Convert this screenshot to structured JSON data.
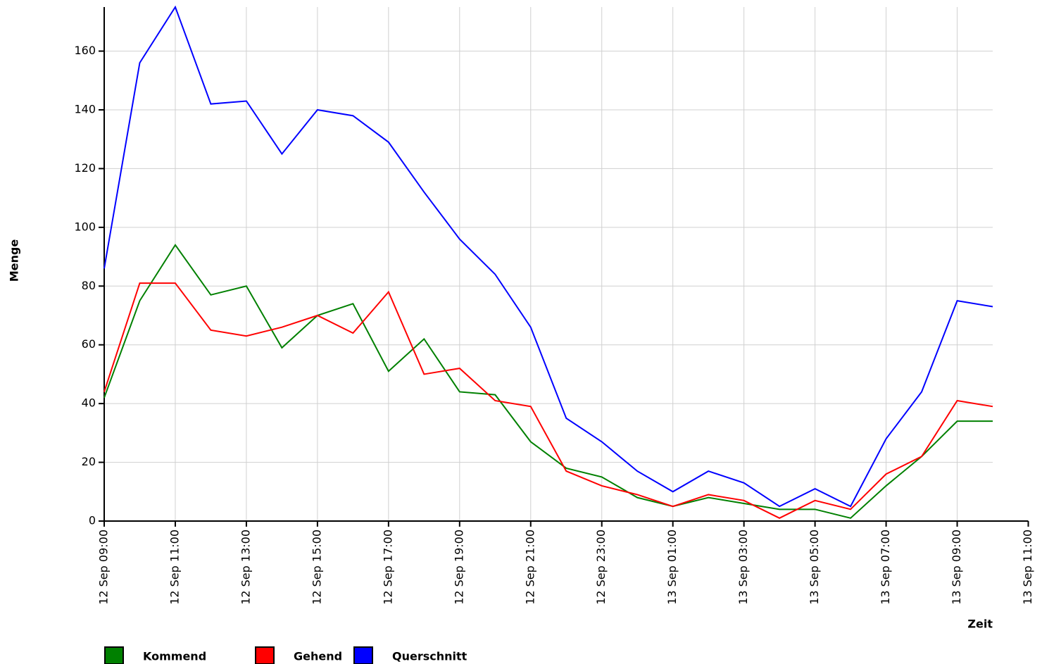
{
  "chart_data": {
    "type": "line",
    "x": [
      "12 Sep 09:00",
      "12 Sep 10:00",
      "12 Sep 11:00",
      "12 Sep 12:00",
      "12 Sep 13:00",
      "12 Sep 14:00",
      "12 Sep 15:00",
      "12 Sep 16:00",
      "12 Sep 17:00",
      "12 Sep 18:00",
      "12 Sep 19:00",
      "12 Sep 20:00",
      "12 Sep 21:00",
      "12 Sep 22:00",
      "12 Sep 23:00",
      "13 Sep 00:00",
      "13 Sep 01:00",
      "13 Sep 02:00",
      "13 Sep 03:00",
      "13 Sep 04:00",
      "13 Sep 05:00",
      "13 Sep 06:00",
      "13 Sep 07:00",
      "13 Sep 08:00",
      "13 Sep 09:00",
      "13 Sep 10:00"
    ],
    "series": [
      {
        "name": "Kommend",
        "color": "#008000",
        "values": [
          42,
          75,
          94,
          77,
          80,
          59,
          70,
          74,
          51,
          62,
          44,
          43,
          27,
          18,
          15,
          8,
          5,
          8,
          6,
          4,
          4,
          1,
          12,
          22,
          34,
          34
        ]
      },
      {
        "name": "Gehend",
        "color": "#ff0000",
        "values": [
          44,
          81,
          81,
          65,
          63,
          66,
          70,
          64,
          78,
          50,
          52,
          41,
          39,
          17,
          12,
          9,
          5,
          9,
          7,
          1,
          7,
          4,
          16,
          22,
          41,
          39
        ]
      },
      {
        "name": "Querschnitt",
        "color": "#0000ff",
        "values": [
          86,
          156,
          175,
          142,
          143,
          125,
          140,
          138,
          129,
          112,
          96,
          84,
          66,
          35,
          27,
          17,
          10,
          17,
          13,
          5,
          11,
          5,
          28,
          44,
          75,
          73
        ]
      }
    ],
    "xlim": [
      "12 Sep 09:00",
      "13 Sep 11:00"
    ],
    "xticks": [
      "12 Sep 09:00",
      "12 Sep 11:00",
      "12 Sep 13:00",
      "12 Sep 15:00",
      "12 Sep 17:00",
      "12 Sep 19:00",
      "12 Sep 21:00",
      "12 Sep 23:00",
      "13 Sep 01:00",
      "13 Sep 03:00",
      "13 Sep 05:00",
      "13 Sep 07:00",
      "13 Sep 09:00",
      "13 Sep 11:00"
    ],
    "ylim": [
      0,
      175
    ],
    "yticks": [
      0,
      20,
      40,
      60,
      80,
      100,
      120,
      140,
      160
    ],
    "xlabel": "Zeit",
    "ylabel": "Menge",
    "grid": true
  }
}
